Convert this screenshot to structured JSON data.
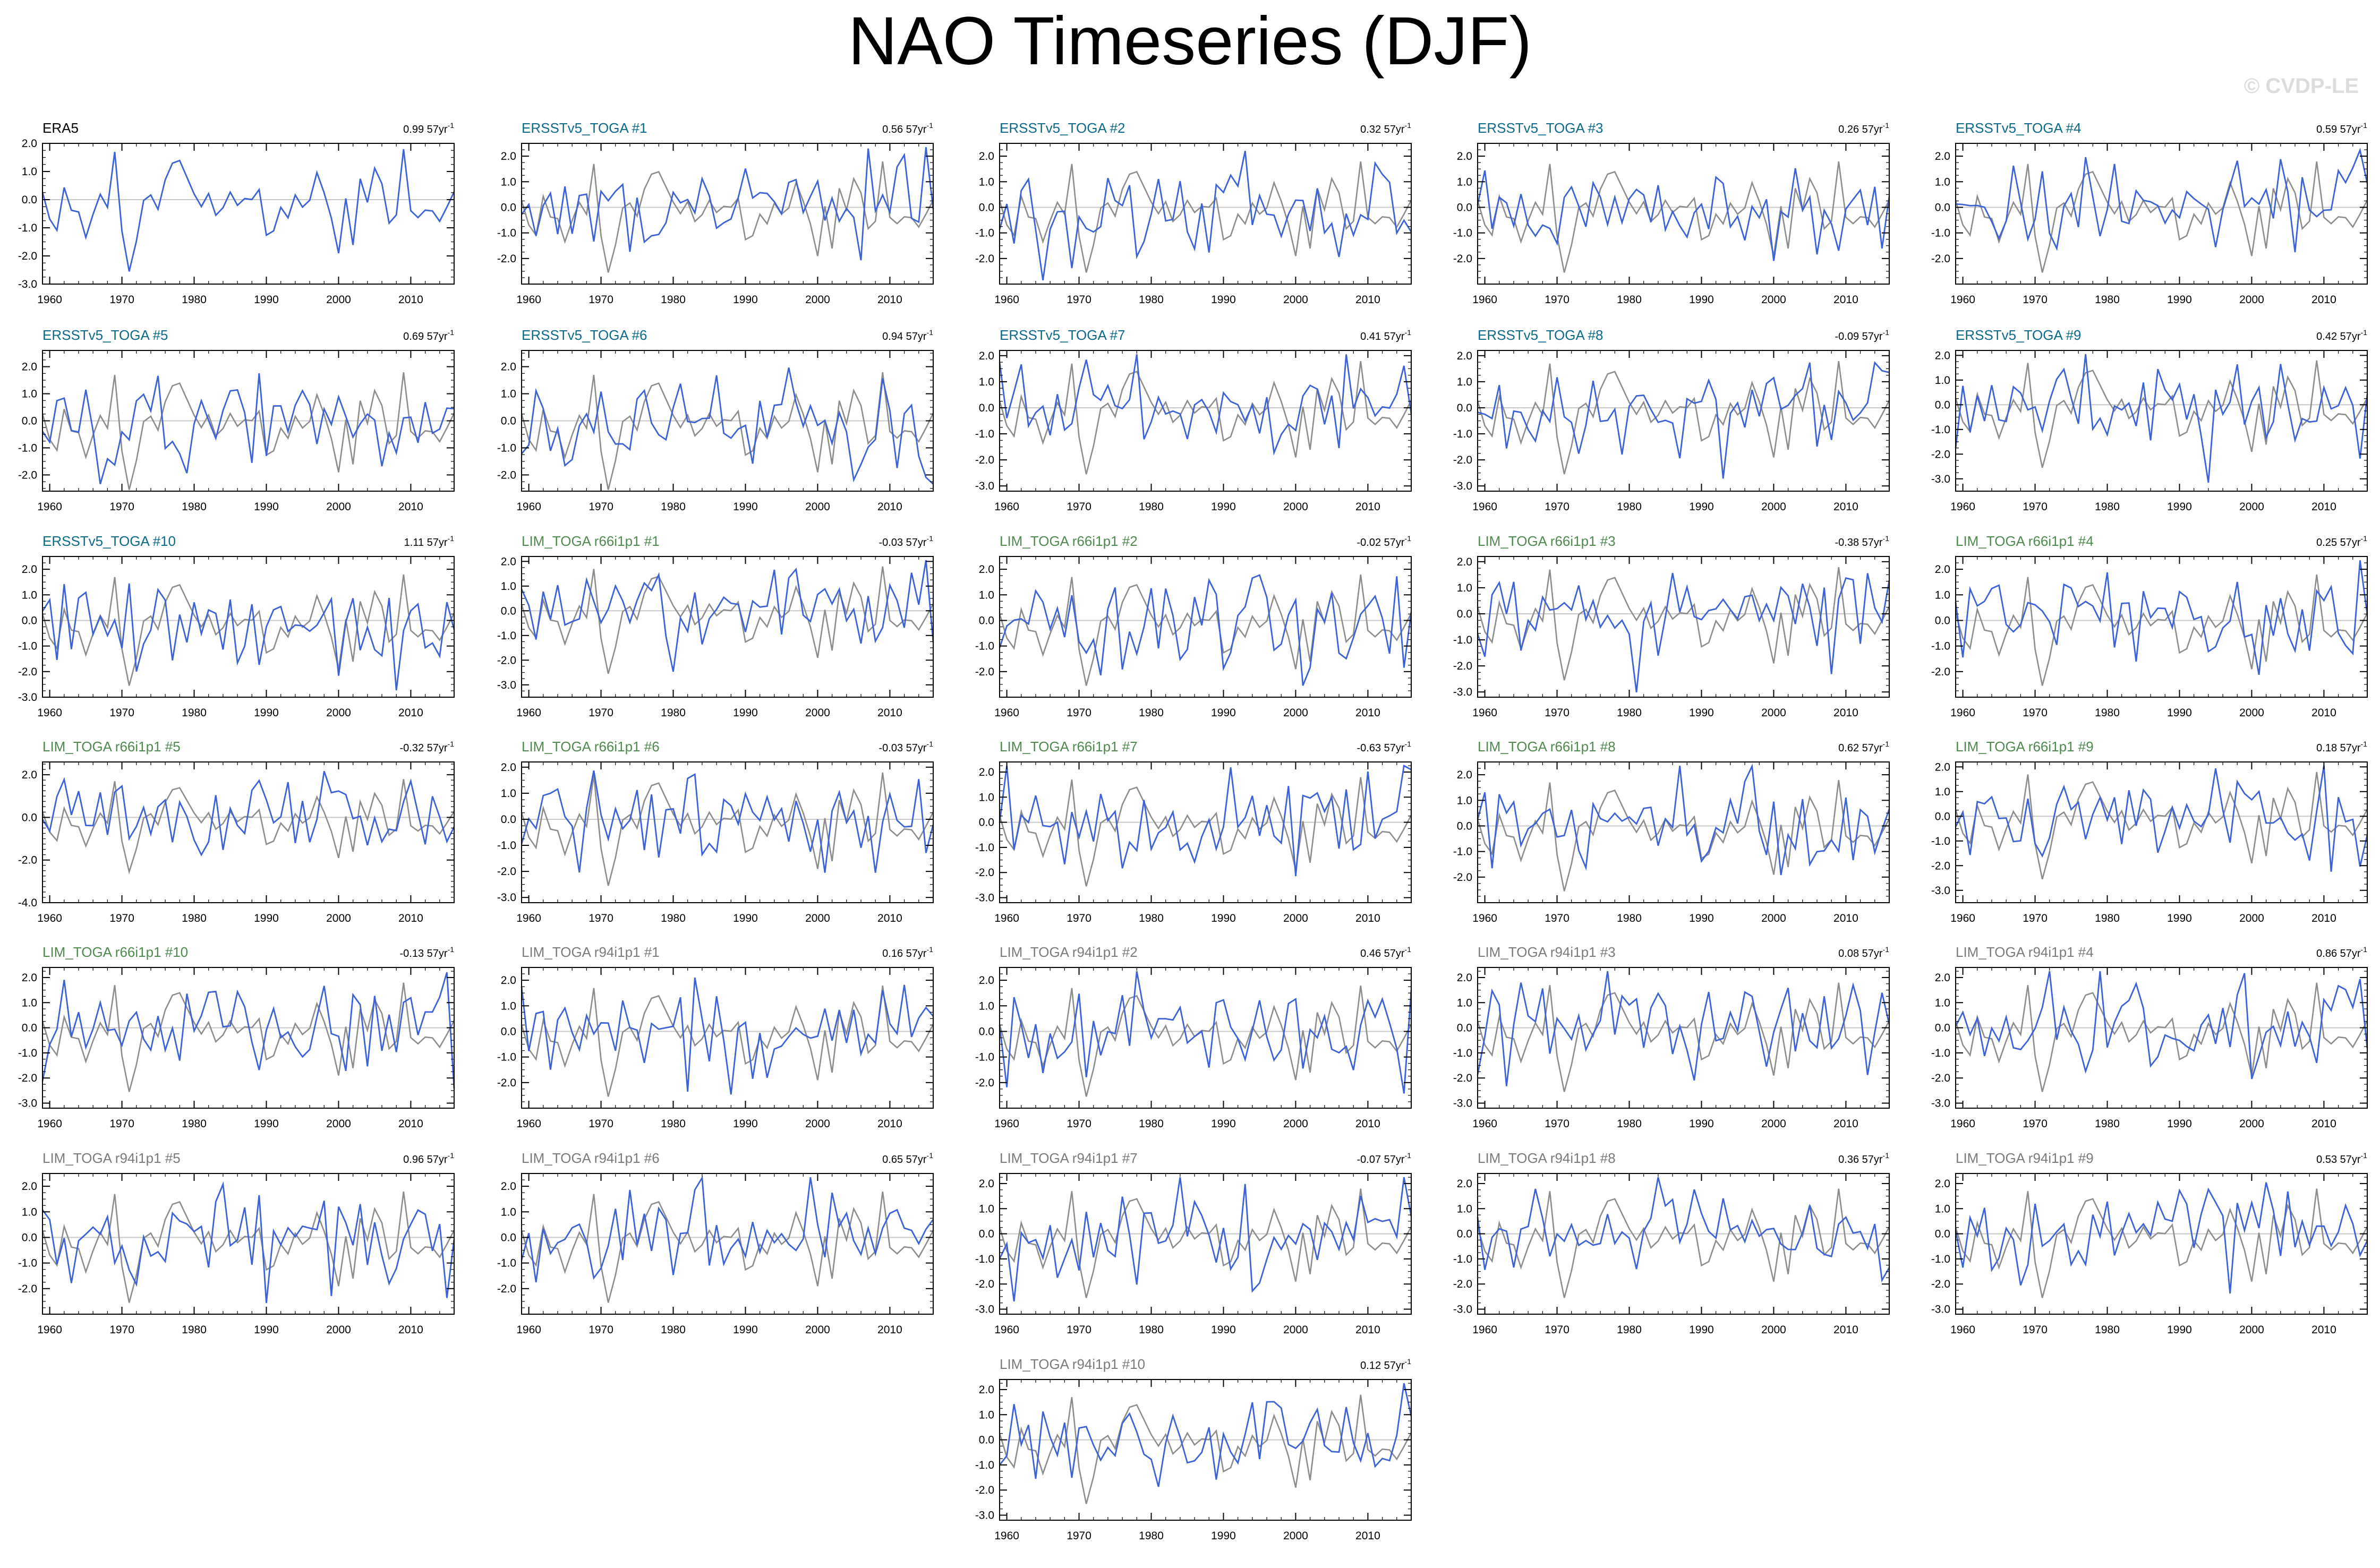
{
  "title": "NAO Timeseries (DJF)",
  "watermark": "© CVDP-LE",
  "colors": {
    "model_line": "#3b62d6",
    "obs_line": "#8c8c8c",
    "era5_title": "#000000",
    "ersst_title": "#0b6a8c",
    "lim66_title": "#4e8a4e",
    "lim94_title": "#7a7a7a",
    "zero_line": "#c8c8c8"
  },
  "chart_data": [
    {
      "type": "line",
      "title": "ERA5",
      "trend_value": "0.99",
      "trend_unit": "57yr",
      "trend_exp": "-1",
      "ylim": [
        -3,
        2
      ],
      "yticks": [
        "2.0",
        "1.0",
        "0.0",
        "-1.0",
        "-2.0",
        "-3.0"
      ],
      "xticks": [
        "1960",
        "1970",
        "1980",
        "1990",
        "2000",
        "2010"
      ],
      "xlim": [
        1959,
        2016
      ]
    },
    {
      "type": "line",
      "title": "ERSSTv5_TOGA #1",
      "trend_value": "0.56",
      "trend_unit": "57yr",
      "trend_exp": "-1",
      "ylim": [
        -3,
        2.5
      ],
      "yticks": [
        "2.0",
        "1.0",
        "0.0",
        "-1.0",
        "-2.0"
      ],
      "xticks": [
        "1960",
        "1970",
        "1980",
        "1990",
        "2000",
        "2010"
      ],
      "xlim": [
        1959,
        2016
      ]
    },
    {
      "type": "line",
      "title": "ERSSTv5_TOGA #2",
      "trend_value": "0.32",
      "trend_unit": "57yr",
      "trend_exp": "-1",
      "ylim": [
        -3,
        2.5
      ],
      "yticks": [
        "2.0",
        "1.0",
        "0.0",
        "-1.0",
        "-2.0"
      ],
      "xticks": [
        "1960",
        "1970",
        "1980",
        "1990",
        "2000",
        "2010"
      ],
      "xlim": [
        1959,
        2016
      ]
    },
    {
      "type": "line",
      "title": "ERSSTv5_TOGA #3",
      "trend_value": "0.26",
      "trend_unit": "57yr",
      "trend_exp": "-1",
      "ylim": [
        -3,
        2.5
      ],
      "yticks": [
        "2.0",
        "1.0",
        "0.0",
        "-1.0",
        "-2.0"
      ],
      "xticks": [
        "1960",
        "1970",
        "1980",
        "1990",
        "2000",
        "2010"
      ],
      "xlim": [
        1959,
        2016
      ]
    },
    {
      "type": "line",
      "title": "ERSSTv5_TOGA #4",
      "trend_value": "0.59",
      "trend_unit": "57yr",
      "trend_exp": "-1",
      "ylim": [
        -3,
        2.5
      ],
      "yticks": [
        "2.0",
        "1.0",
        "0.0",
        "-1.0",
        "-2.0"
      ],
      "xticks": [
        "1960",
        "1970",
        "1980",
        "1990",
        "2000",
        "2010"
      ],
      "xlim": [
        1959,
        2016
      ]
    },
    {
      "type": "line",
      "title": "ERSSTv5_TOGA #5",
      "trend_value": "0.69",
      "trend_unit": "57yr",
      "trend_exp": "-1",
      "ylim": [
        -2.6,
        2.6
      ],
      "yticks": [
        "2.0",
        "1.0",
        "0.0",
        "-1.0",
        "-2.0"
      ],
      "xticks": [
        "1960",
        "1970",
        "1980",
        "1990",
        "2000",
        "2010"
      ],
      "xlim": [
        1959,
        2016
      ]
    },
    {
      "type": "line",
      "title": "ERSSTv5_TOGA #6",
      "trend_value": "0.94",
      "trend_unit": "57yr",
      "trend_exp": "-1",
      "ylim": [
        -2.6,
        2.6
      ],
      "yticks": [
        "2.0",
        "1.0",
        "0.0",
        "-1.0",
        "-2.0"
      ],
      "xticks": [
        "1960",
        "1970",
        "1980",
        "1990",
        "2000",
        "2010"
      ],
      "xlim": [
        1959,
        2016
      ]
    },
    {
      "type": "line",
      "title": "ERSSTv5_TOGA #7",
      "trend_value": "0.41",
      "trend_unit": "57yr",
      "trend_exp": "-1",
      "ylim": [
        -3.2,
        2.2
      ],
      "yticks": [
        "2.0",
        "1.0",
        "0.0",
        "-1.0",
        "-2.0",
        "-3.0"
      ],
      "xticks": [
        "1960",
        "1970",
        "1980",
        "1990",
        "2000",
        "2010"
      ],
      "xlim": [
        1959,
        2016
      ]
    },
    {
      "type": "line",
      "title": "ERSSTv5_TOGA #8",
      "trend_value": "-0.09",
      "trend_unit": "57yr",
      "trend_exp": "-1",
      "ylim": [
        -3.2,
        2.2
      ],
      "yticks": [
        "2.0",
        "1.0",
        "0.0",
        "-1.0",
        "-2.0",
        "-3.0"
      ],
      "xticks": [
        "1960",
        "1970",
        "1980",
        "1990",
        "2000",
        "2010"
      ],
      "xlim": [
        1959,
        2016
      ]
    },
    {
      "type": "line",
      "title": "ERSSTv5_TOGA #9",
      "trend_value": "0.42",
      "trend_unit": "57yr",
      "trend_exp": "-1",
      "ylim": [
        -3.5,
        2.2
      ],
      "yticks": [
        "2.0",
        "1.0",
        "0.0",
        "-1.0",
        "-2.0",
        "-3.0"
      ],
      "xticks": [
        "1960",
        "1970",
        "1980",
        "1990",
        "2000",
        "2010"
      ],
      "xlim": [
        1959,
        2016
      ]
    },
    {
      "type": "line",
      "title": "ERSSTv5_TOGA #10",
      "trend_value": "1.11",
      "trend_unit": "57yr",
      "trend_exp": "-1",
      "ylim": [
        -3,
        2.5
      ],
      "yticks": [
        "2.0",
        "1.0",
        "0.0",
        "-1.0",
        "-2.0",
        "-3.0"
      ],
      "xticks": [
        "1960",
        "1970",
        "1980",
        "1990",
        "2000",
        "2010"
      ],
      "xlim": [
        1959,
        2016
      ]
    },
    {
      "type": "line",
      "title": "LIM_TOGA r66i1p1 #1",
      "trend_value": "-0.03",
      "trend_unit": "57yr",
      "trend_exp": "-1",
      "ylim": [
        -3.5,
        2.2
      ],
      "yticks": [
        "2.0",
        "1.0",
        "0.0",
        "-1.0",
        "-2.0",
        "-3.0"
      ],
      "xticks": [
        "1960",
        "1970",
        "1980",
        "1990",
        "2000",
        "2010"
      ],
      "xlim": [
        1959,
        2016
      ]
    },
    {
      "type": "line",
      "title": "LIM_TOGA r66i1p1 #2",
      "trend_value": "-0.02",
      "trend_unit": "57yr",
      "trend_exp": "-1",
      "ylim": [
        -3,
        2.5
      ],
      "yticks": [
        "2.0",
        "1.0",
        "0.0",
        "-1.0",
        "-2.0"
      ],
      "xticks": [
        "1960",
        "1970",
        "1980",
        "1990",
        "2000",
        "2010"
      ],
      "xlim": [
        1959,
        2016
      ]
    },
    {
      "type": "line",
      "title": "LIM_TOGA r66i1p1 #3",
      "trend_value": "-0.38",
      "trend_unit": "57yr",
      "trend_exp": "-1",
      "ylim": [
        -3.2,
        2.2
      ],
      "yticks": [
        "2.0",
        "1.0",
        "0.0",
        "-1.0",
        "-2.0",
        "-3.0"
      ],
      "xticks": [
        "1960",
        "1970",
        "1980",
        "1990",
        "2000",
        "2010"
      ],
      "xlim": [
        1959,
        2016
      ]
    },
    {
      "type": "line",
      "title": "LIM_TOGA r66i1p1 #4",
      "trend_value": "0.25",
      "trend_unit": "57yr",
      "trend_exp": "-1",
      "ylim": [
        -3,
        2.5
      ],
      "yticks": [
        "2.0",
        "1.0",
        "0.0",
        "-1.0",
        "-2.0"
      ],
      "xticks": [
        "1960",
        "1970",
        "1980",
        "1990",
        "2000",
        "2010"
      ],
      "xlim": [
        1959,
        2016
      ]
    },
    {
      "type": "line",
      "title": "LIM_TOGA r66i1p1 #5",
      "trend_value": "-0.32",
      "trend_unit": "57yr",
      "trend_exp": "-1",
      "ylim": [
        -4,
        2.6
      ],
      "yticks": [
        "2.0",
        "0.0",
        "-2.0",
        "-4.0"
      ],
      "xticks": [
        "1960",
        "1970",
        "1980",
        "1990",
        "2000",
        "2010"
      ],
      "xlim": [
        1959,
        2016
      ]
    },
    {
      "type": "line",
      "title": "LIM_TOGA r66i1p1 #6",
      "trend_value": "-0.03",
      "trend_unit": "57yr",
      "trend_exp": "-1",
      "ylim": [
        -3.2,
        2.2
      ],
      "yticks": [
        "2.0",
        "1.0",
        "0.0",
        "-1.0",
        "-2.0",
        "-3.0"
      ],
      "xticks": [
        "1960",
        "1970",
        "1980",
        "1990",
        "2000",
        "2010"
      ],
      "xlim": [
        1959,
        2016
      ]
    },
    {
      "type": "line",
      "title": "LIM_TOGA r66i1p1 #7",
      "trend_value": "-0.63",
      "trend_unit": "57yr",
      "trend_exp": "-1",
      "ylim": [
        -3.2,
        2.4
      ],
      "yticks": [
        "2.0",
        "1.0",
        "0.0",
        "-1.0",
        "-2.0",
        "-3.0"
      ],
      "xticks": [
        "1960",
        "1970",
        "1980",
        "1990",
        "2000",
        "2010"
      ],
      "xlim": [
        1959,
        2016
      ]
    },
    {
      "type": "line",
      "title": "LIM_TOGA r66i1p1 #8",
      "trend_value": "0.62",
      "trend_unit": "57yr",
      "trend_exp": "-1",
      "ylim": [
        -3,
        2.5
      ],
      "yticks": [
        "2.0",
        "1.0",
        "0.0",
        "-1.0",
        "-2.0"
      ],
      "xticks": [
        "1960",
        "1970",
        "1980",
        "1990",
        "2000",
        "2010"
      ],
      "xlim": [
        1959,
        2016
      ]
    },
    {
      "type": "line",
      "title": "LIM_TOGA r66i1p1 #9",
      "trend_value": "0.18",
      "trend_unit": "57yr",
      "trend_exp": "-1",
      "ylim": [
        -3.5,
        2.2
      ],
      "yticks": [
        "2.0",
        "1.0",
        "0.0",
        "-1.0",
        "-2.0",
        "-3.0"
      ],
      "xticks": [
        "1960",
        "1970",
        "1980",
        "1990",
        "2000",
        "2010"
      ],
      "xlim": [
        1959,
        2016
      ]
    },
    {
      "type": "line",
      "title": "LIM_TOGA r66i1p1 #10",
      "trend_value": "-0.13",
      "trend_unit": "57yr",
      "trend_exp": "-1",
      "ylim": [
        -3.2,
        2.4
      ],
      "yticks": [
        "2.0",
        "1.0",
        "0.0",
        "-1.0",
        "-2.0",
        "-3.0"
      ],
      "xticks": [
        "1960",
        "1970",
        "1980",
        "1990",
        "2000",
        "2010"
      ],
      "xlim": [
        1959,
        2016
      ]
    },
    {
      "type": "line",
      "title": "LIM_TOGA r94i1p1 #1",
      "trend_value": "0.16",
      "trend_unit": "57yr",
      "trend_exp": "-1",
      "ylim": [
        -3,
        2.5
      ],
      "yticks": [
        "2.0",
        "1.0",
        "0.0",
        "-1.0",
        "-2.0"
      ],
      "xticks": [
        "1960",
        "1970",
        "1980",
        "1990",
        "2000",
        "2010"
      ],
      "xlim": [
        1959,
        2016
      ]
    },
    {
      "type": "line",
      "title": "LIM_TOGA r94i1p1 #2",
      "trend_value": "0.46",
      "trend_unit": "57yr",
      "trend_exp": "-1",
      "ylim": [
        -3,
        2.5
      ],
      "yticks": [
        "2.0",
        "1.0",
        "0.0",
        "-1.0",
        "-2.0"
      ],
      "xticks": [
        "1960",
        "1970",
        "1980",
        "1990",
        "2000",
        "2010"
      ],
      "xlim": [
        1959,
        2016
      ]
    },
    {
      "type": "line",
      "title": "LIM_TOGA r94i1p1 #3",
      "trend_value": "0.08",
      "trend_unit": "57yr",
      "trend_exp": "-1",
      "ylim": [
        -3.2,
        2.4
      ],
      "yticks": [
        "2.0",
        "1.0",
        "0.0",
        "-1.0",
        "-2.0",
        "-3.0"
      ],
      "xticks": [
        "1960",
        "1970",
        "1980",
        "1990",
        "2000",
        "2010"
      ],
      "xlim": [
        1959,
        2016
      ]
    },
    {
      "type": "line",
      "title": "LIM_TOGA r94i1p1 #4",
      "trend_value": "0.86",
      "trend_unit": "57yr",
      "trend_exp": "-1",
      "ylim": [
        -3.2,
        2.4
      ],
      "yticks": [
        "2.0",
        "1.0",
        "0.0",
        "-1.0",
        "-2.0",
        "-3.0"
      ],
      "xticks": [
        "1960",
        "1970",
        "1980",
        "1990",
        "2000",
        "2010"
      ],
      "xlim": [
        1959,
        2016
      ]
    },
    {
      "type": "line",
      "title": "LIM_TOGA r94i1p1 #5",
      "trend_value": "0.96",
      "trend_unit": "57yr",
      "trend_exp": "-1",
      "ylim": [
        -3,
        2.5
      ],
      "yticks": [
        "2.0",
        "1.0",
        "0.0",
        "-1.0",
        "-2.0"
      ],
      "xticks": [
        "1960",
        "1970",
        "1980",
        "1990",
        "2000",
        "2010"
      ],
      "xlim": [
        1959,
        2016
      ]
    },
    {
      "type": "line",
      "title": "LIM_TOGA r94i1p1 #6",
      "trend_value": "0.65",
      "trend_unit": "57yr",
      "trend_exp": "-1",
      "ylim": [
        -3,
        2.5
      ],
      "yticks": [
        "2.0",
        "1.0",
        "0.0",
        "-1.0",
        "-2.0"
      ],
      "xticks": [
        "1960",
        "1970",
        "1980",
        "1990",
        "2000",
        "2010"
      ],
      "xlim": [
        1959,
        2016
      ]
    },
    {
      "type": "line",
      "title": "LIM_TOGA r94i1p1 #7",
      "trend_value": "-0.07",
      "trend_unit": "57yr",
      "trend_exp": "-1",
      "ylim": [
        -3.2,
        2.4
      ],
      "yticks": [
        "2.0",
        "1.0",
        "0.0",
        "-1.0",
        "-2.0",
        "-3.0"
      ],
      "xticks": [
        "1960",
        "1970",
        "1980",
        "1990",
        "2000",
        "2010"
      ],
      "xlim": [
        1959,
        2016
      ]
    },
    {
      "type": "line",
      "title": "LIM_TOGA r94i1p1 #8",
      "trend_value": "0.36",
      "trend_unit": "57yr",
      "trend_exp": "-1",
      "ylim": [
        -3.2,
        2.4
      ],
      "yticks": [
        "2.0",
        "1.0",
        "0.0",
        "-1.0",
        "-2.0",
        "-3.0"
      ],
      "xticks": [
        "1960",
        "1970",
        "1980",
        "1990",
        "2000",
        "2010"
      ],
      "xlim": [
        1959,
        2016
      ]
    },
    {
      "type": "line",
      "title": "LIM_TOGA r94i1p1 #9",
      "trend_value": "0.53",
      "trend_unit": "57yr",
      "trend_exp": "-1",
      "ylim": [
        -3.2,
        2.4
      ],
      "yticks": [
        "2.0",
        "1.0",
        "0.0",
        "-1.0",
        "-2.0",
        "-3.0"
      ],
      "xticks": [
        "1960",
        "1970",
        "1980",
        "1990",
        "2000",
        "2010"
      ],
      "xlim": [
        1959,
        2016
      ]
    },
    {
      "type": "line",
      "title": "LIM_TOGA r94i1p1 #10",
      "trend_value": "0.12",
      "trend_unit": "57yr",
      "trend_exp": "-1",
      "ylim": [
        -3.2,
        2.4
      ],
      "yticks": [
        "2.0",
        "1.0",
        "0.0",
        "-1.0",
        "-2.0",
        "-3.0"
      ],
      "xticks": [
        "1960",
        "1970",
        "1980",
        "1990",
        "2000",
        "2010"
      ],
      "xlim": [
        1959,
        2016
      ]
    }
  ]
}
